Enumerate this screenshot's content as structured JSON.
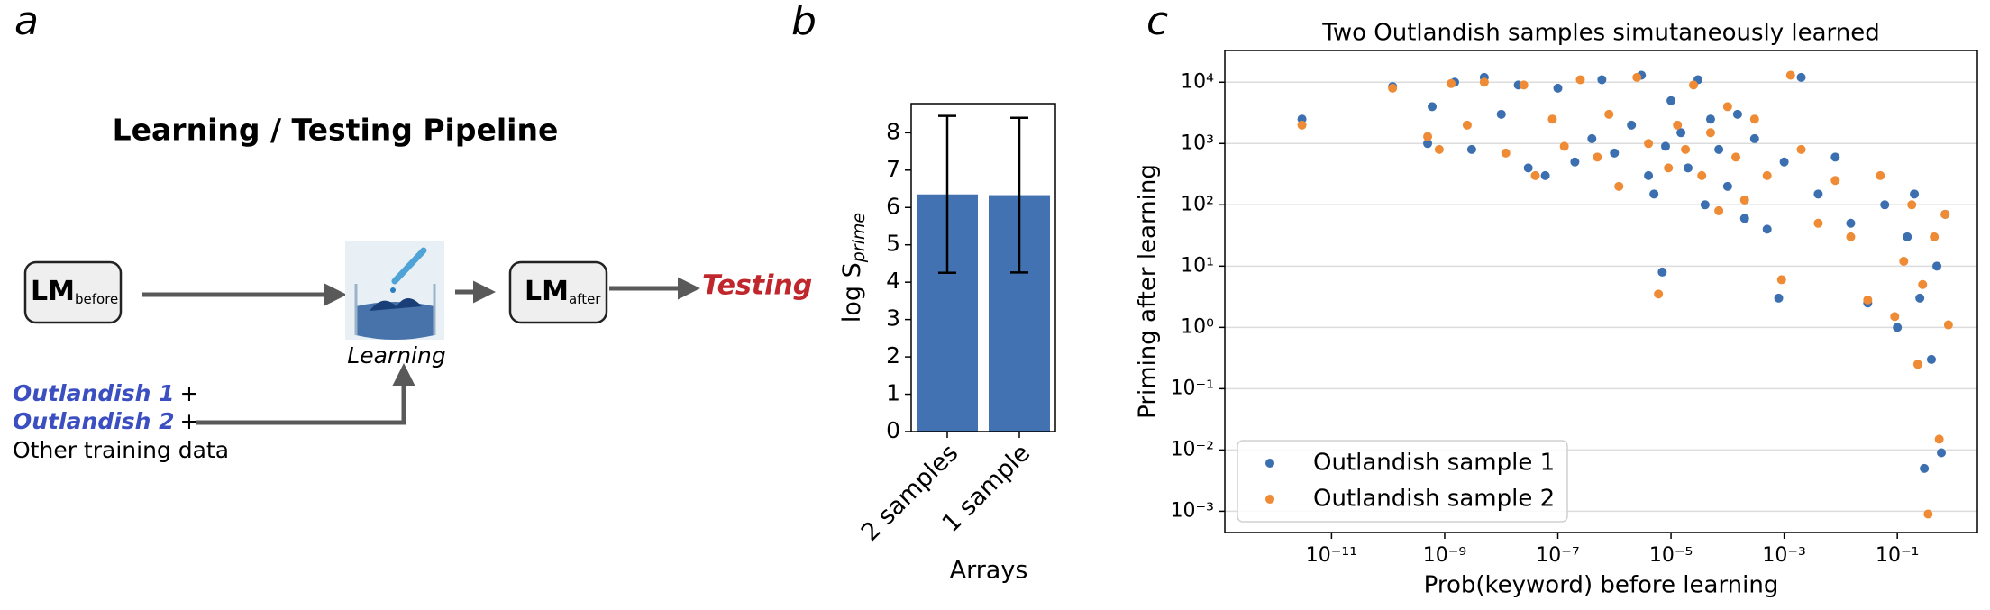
{
  "panels": [
    "a",
    "b",
    "c"
  ],
  "diagram": {
    "title": "Learning / Testing Pipeline",
    "nodes": [
      {
        "label": "LM",
        "sub": "before"
      },
      {
        "label": "LM",
        "sub": "after"
      }
    ],
    "step": "Learning",
    "output": "Testing",
    "inputs": [
      {
        "text": "Outlandish 1",
        "suffix": "+"
      },
      {
        "text": "Outlandish 2",
        "suffix": "+"
      },
      {
        "text": "Other training data"
      }
    ]
  },
  "chart_data": [
    {
      "type": "bar",
      "categories": [
        "2 samples",
        "1 sample"
      ],
      "values": [
        6.35,
        6.33
      ],
      "errors": [
        2.1,
        2.07
      ],
      "color": "#4272b1",
      "xlabel": "Arrays",
      "ylabel": {
        "text": "log S",
        "sub": "prime"
      },
      "ylim": [
        0,
        8.78
      ],
      "yticks": [
        0,
        1,
        2,
        3,
        4,
        5,
        6,
        7,
        8
      ]
    },
    {
      "type": "scatter",
      "title": "Two Outlandish samples simutaneously learned",
      "xlabel": "Prob(keyword) before learning",
      "ylabel": "Priming after learning",
      "xscale": "log",
      "yscale": "log",
      "xlim": [
        1.3e-13,
        2.6
      ],
      "ylim": [
        0.00045,
        33000
      ],
      "xticks": [
        {
          "value": 1e-11,
          "label": "10⁻¹¹"
        },
        {
          "value": 1e-09,
          "label": "10⁻⁹"
        },
        {
          "value": 1e-07,
          "label": "10⁻⁷"
        },
        {
          "value": 1e-05,
          "label": "10⁻⁵"
        },
        {
          "value": 0.001,
          "label": "10⁻³"
        },
        {
          "value": 0.1,
          "label": "10⁻¹"
        }
      ],
      "yticks": [
        {
          "value": 0.001,
          "label": "10⁻³"
        },
        {
          "value": 0.01,
          "label": "10⁻²"
        },
        {
          "value": 0.1,
          "label": "10⁻¹"
        },
        {
          "value": 1,
          "label": "10⁰"
        },
        {
          "value": 10,
          "label": "10¹"
        },
        {
          "value": 100,
          "label": "10²"
        },
        {
          "value": 1000,
          "label": "10³"
        },
        {
          "value": 10000,
          "label": "10⁴"
        }
      ],
      "grid": "y",
      "legend": "lower left",
      "series": [
        {
          "name": "Outlandish sample 1",
          "color": "#3b6fb0",
          "x": [
            3e-12,
            1.2e-10,
            5e-10,
            6e-10,
            1.5e-09,
            3e-09,
            5e-09,
            1e-08,
            2e-08,
            3e-08,
            6e-08,
            1e-07,
            2e-07,
            4e-07,
            6e-07,
            1e-06,
            2e-06,
            3e-06,
            4e-06,
            5e-06,
            7e-06,
            8e-06,
            1e-05,
            1.5e-05,
            2e-05,
            3e-05,
            4e-05,
            5e-05,
            7e-05,
            0.0001,
            0.00015,
            0.0002,
            0.0003,
            0.0005,
            0.0008,
            0.001,
            0.002,
            0.004,
            0.008,
            0.015,
            0.03,
            0.06,
            0.1,
            0.15,
            0.2,
            0.25,
            0.3,
            0.4,
            0.5,
            0.6,
            0.7
          ],
          "values": [
            2500,
            8500,
            1000,
            4000,
            10000,
            800,
            12000,
            3000,
            9000,
            400,
            300,
            8000,
            500,
            1200,
            11000,
            700,
            2000,
            13000,
            300,
            150,
            8,
            900,
            5000,
            1500,
            400,
            11000,
            100,
            2500,
            800,
            200,
            3000,
            60,
            1200,
            40,
            3,
            500,
            12000,
            150,
            600,
            50,
            2.5,
            100,
            1,
            30,
            150,
            3,
            0.005,
            0.3,
            10,
            0.009,
            70
          ]
        },
        {
          "name": "Outlandish sample 2",
          "color": "#ef8a35",
          "x": [
            3e-12,
            1.2e-10,
            5e-10,
            8e-10,
            1.3e-09,
            2.5e-09,
            5e-09,
            1.2e-08,
            2.5e-08,
            4e-08,
            8e-08,
            1.3e-07,
            2.5e-07,
            5e-07,
            8e-07,
            1.2e-06,
            2.5e-06,
            4e-06,
            6e-06,
            9e-06,
            1.3e-05,
            1.8e-05,
            2.5e-05,
            3.5e-05,
            5e-05,
            7e-05,
            0.0001,
            0.00014,
            0.0002,
            0.0003,
            0.0005,
            0.0009,
            0.0013,
            0.002,
            0.004,
            0.008,
            0.015,
            0.03,
            0.05,
            0.09,
            0.13,
            0.18,
            0.23,
            0.28,
            0.35,
            0.45,
            0.55,
            0.7,
            0.8
          ],
          "values": [
            2000,
            8000,
            1300,
            800,
            9500,
            2000,
            10000,
            700,
            9000,
            300,
            2500,
            900,
            11000,
            600,
            3000,
            200,
            12000,
            1000,
            3.5,
            400,
            2000,
            800,
            9000,
            300,
            1500,
            80,
            4000,
            600,
            120,
            2500,
            300,
            6,
            13000,
            800,
            50,
            250,
            30,
            2.8,
            300,
            1.5,
            12,
            100,
            0.25,
            5,
            0.0009,
            30,
            0.015,
            70,
            1.1
          ]
        }
      ]
    }
  ]
}
